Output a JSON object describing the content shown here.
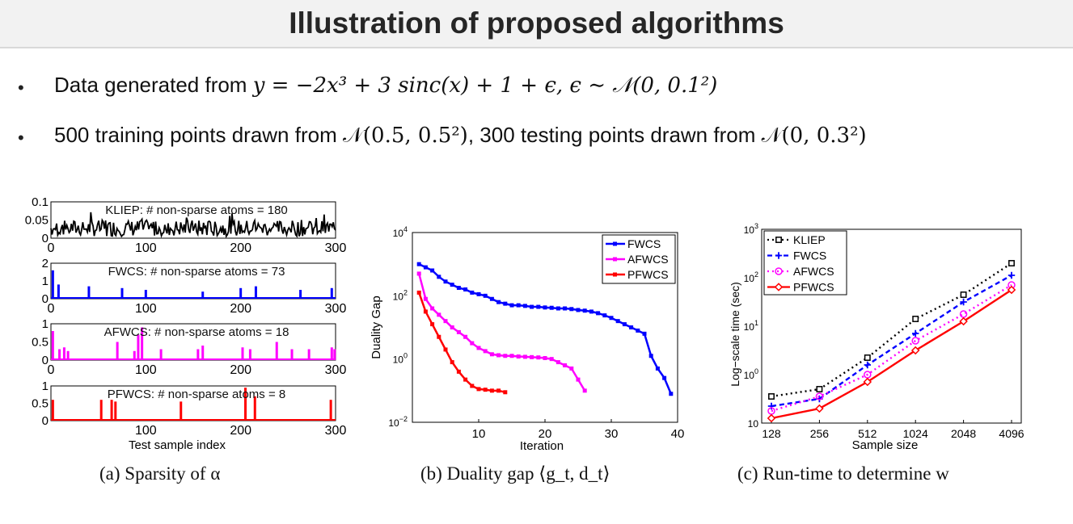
{
  "slide": {
    "title": "Illustration of proposed algorithms",
    "bullets": [
      {
        "prefix": "Data generated from",
        "formula": "y = −2x³ + 3 sinc(x) + 1 + ϵ, ϵ ∼ 𝒩(0, 0.1²)"
      },
      {
        "prefix": "500 training points drawn from",
        "formula1": "𝒩(0.5, 0.5²)",
        "middle": ", 300 testing points drawn from",
        "formula2": "𝒩(0, 0.3²)"
      }
    ],
    "captions": {
      "a": "(a) Sparsity of α",
      "b": "(b) Duality gap ⟨g_t, d_t⟩",
      "c": "(c) Run-time to determine w"
    }
  },
  "chart_data": [
    {
      "type": "bar",
      "id": "sparsity",
      "xlabel": "Test sample index",
      "xlim": [
        0,
        300
      ],
      "xticks": [
        0,
        100,
        200,
        300
      ],
      "panels": [
        {
          "name": "KLIEP",
          "label": "KLIEP: # non-sparse atoms = 180",
          "color": "#000000",
          "ylim": [
            0,
            0.1
          ],
          "yticks": [
            "0.1",
            "0.05",
            "0"
          ],
          "atoms": 180,
          "style": "dense"
        },
        {
          "name": "FWCS",
          "label": "FWCS: # non-sparse atoms = 73",
          "color": "#0000ff",
          "ylim": [
            0,
            2
          ],
          "yticks": [
            "2",
            "1",
            "0"
          ],
          "atoms": 73,
          "spikes": [
            [
              2,
              1.6
            ],
            [
              8,
              0.8
            ],
            [
              40,
              0.7
            ],
            [
              75,
              0.6
            ],
            [
              100,
              0.5
            ],
            [
              160,
              0.4
            ],
            [
              200,
              0.6
            ],
            [
              216,
              0.7
            ],
            [
              263,
              0.5
            ],
            [
              296,
              0.6
            ]
          ]
        },
        {
          "name": "AFWCS",
          "label": "AFWCS: # non-sparse atoms = 18",
          "color": "#ff00ff",
          "ylim": [
            0,
            1
          ],
          "yticks": [
            "1",
            "0.5",
            "0"
          ],
          "atoms": 18,
          "spikes": [
            [
              2,
              0.8
            ],
            [
              9,
              0.3
            ],
            [
              14,
              0.35
            ],
            [
              18,
              0.25
            ],
            [
              70,
              0.5
            ],
            [
              88,
              0.25
            ],
            [
              92,
              0.7
            ],
            [
              96,
              0.9
            ],
            [
              116,
              0.3
            ],
            [
              155,
              0.3
            ],
            [
              160,
              0.4
            ],
            [
              202,
              0.35
            ],
            [
              210,
              0.3
            ],
            [
              238,
              0.5
            ],
            [
              254,
              0.3
            ],
            [
              272,
              0.3
            ],
            [
              296,
              0.35
            ],
            [
              299,
              0.3
            ]
          ]
        },
        {
          "name": "PFWCS",
          "label": "PFWCS: # non-sparse atoms = 8",
          "color": "#ff0000",
          "ylim": [
            0,
            1
          ],
          "yticks": [
            "1",
            "0.5",
            "0"
          ],
          "atoms": 8,
          "spikes": [
            [
              2,
              0.6
            ],
            [
              53,
              0.6
            ],
            [
              64,
              0.6
            ],
            [
              68,
              0.55
            ],
            [
              137,
              0.55
            ],
            [
              205,
              0.95
            ],
            [
              215,
              0.7
            ],
            [
              295,
              0.6
            ]
          ]
        }
      ]
    },
    {
      "type": "line",
      "id": "duality-gap",
      "xlabel": "Iteration",
      "ylabel": "Duality Gap",
      "xlim": [
        0,
        40
      ],
      "xticks": [
        10,
        20,
        30,
        40
      ],
      "ylim_log10": [
        -2,
        4
      ],
      "yticks": [
        {
          "base": "10",
          "exp": "4",
          "v": 4
        },
        {
          "base": "10",
          "exp": "2",
          "v": 2
        },
        {
          "base": "10",
          "exp": "0",
          "v": 0
        },
        {
          "base": "10",
          "exp": "−2",
          "v": -2
        }
      ],
      "legend": "top-right",
      "series": [
        {
          "name": "FWCS",
          "color": "#0000ff",
          "marker": "square",
          "x": [
            1,
            2,
            3,
            4,
            5,
            6,
            7,
            8,
            9,
            10,
            11,
            12,
            13,
            14,
            15,
            16,
            17,
            18,
            19,
            20,
            21,
            22,
            23,
            24,
            25,
            26,
            27,
            28,
            29,
            30,
            31,
            32,
            33,
            34,
            35,
            36,
            37,
            38,
            39
          ],
          "log10y": [
            3.0,
            2.9,
            2.8,
            2.6,
            2.45,
            2.35,
            2.25,
            2.2,
            2.1,
            2.05,
            2.0,
            1.9,
            1.8,
            1.75,
            1.7,
            1.7,
            1.68,
            1.65,
            1.65,
            1.63,
            1.62,
            1.6,
            1.6,
            1.58,
            1.55,
            1.53,
            1.5,
            1.45,
            1.38,
            1.3,
            1.2,
            1.1,
            1.0,
            0.9,
            0.8,
            0.1,
            -0.3,
            -0.6,
            -1.1
          ]
        },
        {
          "name": "AFWCS",
          "color": "#ff00ff",
          "marker": "circle",
          "x": [
            1,
            2,
            3,
            4,
            5,
            6,
            7,
            8,
            9,
            10,
            11,
            12,
            13,
            14,
            15,
            16,
            17,
            18,
            19,
            20,
            21,
            22,
            23,
            24,
            25,
            26
          ],
          "log10y": [
            2.7,
            1.9,
            1.6,
            1.4,
            1.2,
            1.0,
            0.85,
            0.7,
            0.5,
            0.35,
            0.25,
            0.15,
            0.12,
            0.1,
            0.1,
            0.08,
            0.07,
            0.06,
            0.05,
            0.03,
            0.0,
            -0.1,
            -0.2,
            -0.3,
            -0.65,
            -1.0
          ]
        },
        {
          "name": "PFWCS",
          "color": "#ff0000",
          "marker": "diamond",
          "x": [
            1,
            2,
            3,
            4,
            5,
            6,
            7,
            8,
            9,
            10,
            11,
            12,
            13,
            14
          ],
          "log10y": [
            2.1,
            1.5,
            1.1,
            0.7,
            0.3,
            -0.1,
            -0.4,
            -0.65,
            -0.85,
            -0.95,
            -0.97,
            -1.0,
            -1.0,
            -1.05
          ]
        }
      ]
    },
    {
      "type": "line",
      "id": "run-time",
      "xlabel": "Sample size",
      "ylabel": "Log−scale time (sec)",
      "categories": [
        "128",
        "256",
        "512",
        "1024",
        "2048",
        "4096"
      ],
      "ylim_log10": [
        -1,
        3
      ],
      "yticks": [
        {
          "base": "10",
          "exp": "3",
          "v": 3
        },
        {
          "base": "10",
          "exp": "2",
          "v": 2
        },
        {
          "base": "10",
          "exp": "1",
          "v": 1
        },
        {
          "base": "10",
          "exp": "0",
          "v": 0
        },
        {
          "base": "10",
          "exp": "",
          "v": -1
        }
      ],
      "legend": "top-left",
      "series": [
        {
          "name": "KLIEP",
          "color": "#000000",
          "marker": "square",
          "dash": "2,4",
          "log10y": [
            -0.45,
            -0.3,
            0.35,
            1.15,
            1.65,
            2.3
          ]
        },
        {
          "name": "FWCS",
          "color": "#0000ff",
          "marker": "plus",
          "dash": "6,4",
          "log10y": [
            -0.65,
            -0.5,
            0.2,
            0.85,
            1.5,
            2.05
          ]
        },
        {
          "name": "AFWCS",
          "color": "#ff00ff",
          "marker": "circle",
          "dash": "2,4",
          "log10y": [
            -0.75,
            -0.45,
            0.0,
            0.7,
            1.25,
            1.85
          ]
        },
        {
          "name": "PFWCS",
          "color": "#ff0000",
          "marker": "diamond",
          "dash": "",
          "log10y": [
            -0.9,
            -0.7,
            -0.15,
            0.5,
            1.1,
            1.75
          ]
        }
      ]
    }
  ]
}
